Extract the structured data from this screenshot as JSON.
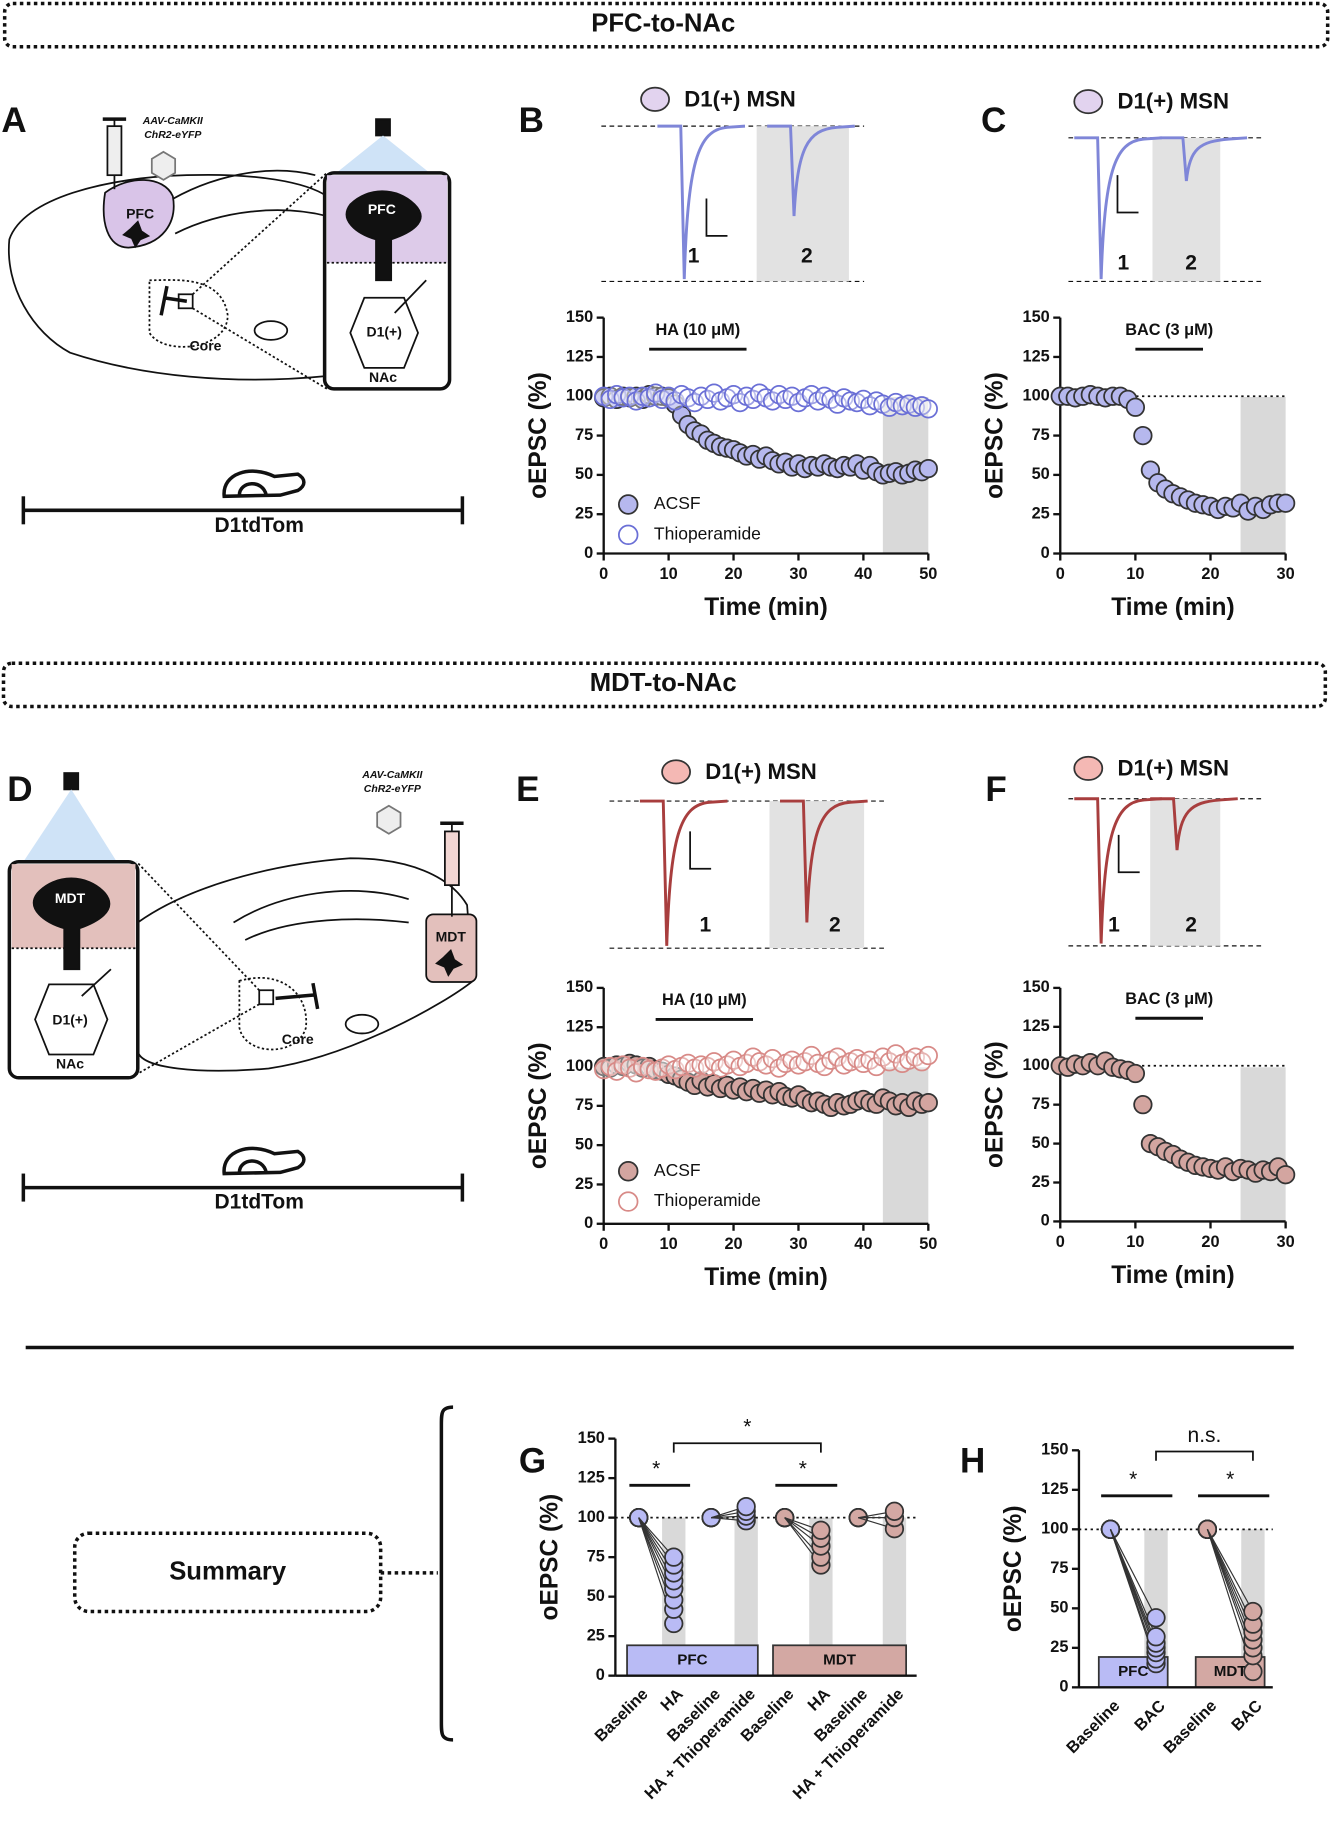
{
  "sections": [
    {
      "title": "PFC-to-NAc"
    },
    {
      "title": "MDT-to-NAc"
    }
  ],
  "diagrams": [
    {
      "panel": "A",
      "virus": [
        "AAV-CaMKII",
        "ChR2-eYFP"
      ],
      "region": "PFC",
      "inset_region": "PFC",
      "cell": "D1(+)",
      "target": "NAc",
      "core": "Core",
      "mouse": "D1tdTom"
    },
    {
      "panel": "D",
      "virus": [
        "AAV-CaMKII",
        "ChR2-eYFP"
      ],
      "region": "MDT",
      "inset_region": "MDT",
      "cell": "D1(+)",
      "target": "NAc",
      "core": "Core",
      "mouse": "D1tdTom"
    }
  ],
  "summary": {
    "label": "Summary"
  },
  "chart_data": [
    {
      "panel": "B",
      "type": "scatter",
      "inset": {
        "label": "D1(+) MSN",
        "traces": [
          "1",
          "2"
        ],
        "color": "#7f86d8",
        "cell_color": "#e2d3ef"
      },
      "drug": {
        "label": "HA (10 μM)",
        "x": [
          7,
          22
        ]
      },
      "shade": [
        43,
        50
      ],
      "xlabel": "Time (min)",
      "ylabel": "oEPSC (%)",
      "xlim": [
        0,
        50
      ],
      "xticks": [
        0,
        10,
        20,
        30,
        40,
        50
      ],
      "ylim": [
        0,
        150
      ],
      "yticks": [
        0,
        25,
        50,
        75,
        100,
        125,
        150
      ],
      "x": [
        0,
        1,
        2,
        3,
        4,
        5,
        6,
        7,
        8,
        9,
        10,
        11,
        12,
        13,
        14,
        15,
        16,
        17,
        18,
        19,
        20,
        21,
        22,
        23,
        24,
        25,
        26,
        27,
        28,
        29,
        30,
        31,
        32,
        33,
        34,
        35,
        36,
        37,
        38,
        39,
        40,
        41,
        42,
        43,
        44,
        45,
        46,
        47,
        48,
        49,
        50
      ],
      "series": [
        {
          "name": "ACSF",
          "color": "#b6b8ee",
          "filled": true,
          "values": [
            99,
            100,
            98,
            100,
            99,
            100,
            98,
            101,
            100,
            100,
            99,
            95,
            88,
            82,
            78,
            76,
            72,
            70,
            68,
            67,
            66,
            64,
            62,
            63,
            60,
            62,
            59,
            57,
            58,
            55,
            57,
            54,
            56,
            55,
            57,
            55,
            54,
            56,
            55,
            57,
            53,
            56,
            52,
            50,
            51,
            52,
            50,
            51,
            53,
            52,
            54
          ]
        },
        {
          "name": "Thioperamide",
          "color": "#6a6fd6",
          "filled": false,
          "values": [
            100,
            98,
            101,
            99,
            100,
            97,
            100,
            99,
            102,
            98,
            100,
            97,
            101,
            99,
            96,
            100,
            98,
            102,
            97,
            99,
            101,
            96,
            100,
            98,
            102,
            99,
            97,
            101,
            98,
            100,
            96,
            99,
            101,
            97,
            100,
            98,
            95,
            99,
            97,
            96,
            98,
            94,
            97,
            95,
            93,
            96,
            94,
            95,
            93,
            94,
            92
          ]
        }
      ]
    },
    {
      "panel": "C",
      "type": "scatter",
      "inset": {
        "label": "D1(+) MSN",
        "traces": [
          "1",
          "2"
        ],
        "color": "#7f86d8",
        "cell_color": "#e2d3ef"
      },
      "drug": {
        "label": "BAC (3 μM)",
        "x": [
          10,
          19
        ]
      },
      "shade": [
        24,
        30
      ],
      "reference_line": 100,
      "xlabel": "Time (min)",
      "ylabel": "oEPSC (%)",
      "xlim": [
        0,
        30
      ],
      "xticks": [
        0,
        10,
        20,
        30
      ],
      "ylim": [
        0,
        150
      ],
      "yticks": [
        0,
        25,
        50,
        75,
        100,
        125,
        150
      ],
      "x": [
        0,
        1,
        2,
        3,
        4,
        5,
        6,
        7,
        8,
        9,
        10,
        11,
        12,
        13,
        14,
        15,
        16,
        17,
        18,
        19,
        20,
        21,
        22,
        23,
        24,
        25,
        26,
        27,
        28,
        29,
        30
      ],
      "series": [
        {
          "color": "#b6b8ee",
          "filled": true,
          "values": [
            100,
            100,
            99,
            100,
            101,
            100,
            99,
            100,
            100,
            98,
            93,
            75,
            53,
            45,
            41,
            38,
            36,
            34,
            32,
            31,
            30,
            28,
            30,
            29,
            32,
            27,
            30,
            28,
            31,
            32,
            32
          ]
        }
      ]
    },
    {
      "panel": "E",
      "type": "scatter",
      "inset": {
        "label": "D1(+) MSN",
        "traces": [
          "1",
          "2"
        ],
        "color": "#a83e3e",
        "cell_color": "#f4b8b4"
      },
      "drug": {
        "label": "HA (10 μM)",
        "x": [
          8,
          23
        ]
      },
      "shade": [
        43,
        50
      ],
      "xlabel": "Time (min)",
      "ylabel": "oEPSC (%)",
      "xlim": [
        0,
        50
      ],
      "xticks": [
        0,
        10,
        20,
        30,
        40,
        50
      ],
      "ylim": [
        0,
        150
      ],
      "yticks": [
        0,
        25,
        50,
        75,
        100,
        125,
        150
      ],
      "x": [
        0,
        1,
        2,
        3,
        4,
        5,
        6,
        7,
        8,
        9,
        10,
        11,
        12,
        13,
        14,
        15,
        16,
        17,
        18,
        19,
        20,
        21,
        22,
        23,
        24,
        25,
        26,
        27,
        28,
        29,
        30,
        31,
        32,
        33,
        34,
        35,
        36,
        37,
        38,
        39,
        40,
        41,
        42,
        43,
        44,
        45,
        46,
        47,
        48,
        49,
        50
      ],
      "series": [
        {
          "name": "ACSF",
          "color": "#d3a5a0",
          "filled": true,
          "values": [
            100,
            99,
            101,
            100,
            102,
            101,
            99,
            100,
            98,
            97,
            95,
            94,
            92,
            90,
            88,
            91,
            87,
            89,
            86,
            88,
            85,
            87,
            84,
            86,
            83,
            85,
            82,
            84,
            81,
            80,
            82,
            79,
            77,
            78,
            76,
            74,
            77,
            75,
            76,
            78,
            79,
            77,
            76,
            80,
            78,
            75,
            77,
            74,
            78,
            76,
            77
          ]
        },
        {
          "name": "Thioperamide",
          "color": "#d88a87",
          "filled": false,
          "values": [
            98,
            100,
            97,
            101,
            99,
            96,
            100,
            98,
            97,
            99,
            101,
            98,
            100,
            102,
            99,
            101,
            100,
            103,
            99,
            101,
            104,
            100,
            102,
            106,
            103,
            101,
            105,
            99,
            102,
            104,
            101,
            103,
            107,
            102,
            100,
            104,
            106,
            101,
            103,
            105,
            102,
            104,
            100,
            106,
            103,
            108,
            102,
            104,
            106,
            103,
            107
          ]
        }
      ]
    },
    {
      "panel": "F",
      "type": "scatter",
      "inset": {
        "label": "D1(+) MSN",
        "traces": [
          "1",
          "2"
        ],
        "color": "#a83e3e",
        "cell_color": "#f4b8b4"
      },
      "drug": {
        "label": "BAC (3 μM)",
        "x": [
          10,
          19
        ]
      },
      "shade": [
        24,
        30
      ],
      "reference_line": 100,
      "xlabel": "Time (min)",
      "ylabel": "oEPSC (%)",
      "xlim": [
        0,
        30
      ],
      "xticks": [
        0,
        10,
        20,
        30
      ],
      "ylim": [
        0,
        150
      ],
      "yticks": [
        0,
        25,
        50,
        75,
        100,
        125,
        150
      ],
      "x": [
        0,
        1,
        2,
        3,
        4,
        5,
        6,
        7,
        8,
        9,
        10,
        11,
        12,
        13,
        14,
        15,
        16,
        17,
        18,
        19,
        20,
        21,
        22,
        23,
        24,
        25,
        26,
        27,
        28,
        29,
        30
      ],
      "series": [
        {
          "color": "#d3a5a0",
          "filled": true,
          "values": [
            100,
            99,
            101,
            100,
            102,
            100,
            103,
            99,
            98,
            97,
            95,
            75,
            50,
            48,
            45,
            43,
            40,
            38,
            36,
            35,
            34,
            33,
            35,
            32,
            34,
            33,
            31,
            33,
            32,
            35,
            30
          ]
        }
      ]
    },
    {
      "panel": "G",
      "type": "dot",
      "ylabel": "oEPSC (%)",
      "ylim": [
        0,
        150
      ],
      "yticks": [
        0,
        25,
        50,
        75,
        100,
        125,
        150
      ],
      "reference_line": 100,
      "categories": [
        "Baseline",
        "HA",
        "Baseline",
        "HA + Thioperamide",
        "Baseline",
        "HA",
        "Baseline",
        "HA + Thioperamide"
      ],
      "groups": [
        {
          "name": "PFC",
          "color": "#b9bbf5",
          "values": [
            [
              100,
              100,
              100,
              100,
              100,
              100,
              100,
              100
            ],
            [
              33,
              42,
              48,
              55,
              60,
              65,
              70,
              75
            ],
            [
              100,
              100,
              100,
              100
            ],
            [
              98,
              101,
              104,
              107
            ]
          ]
        },
        {
          "name": "MDT",
          "color": "#d3a8a3",
          "values": [
            [
              100,
              100,
              100,
              100,
              100
            ],
            [
              70,
              75,
              82,
              87,
              92
            ],
            [
              100,
              100,
              100
            ],
            [
              93,
              100,
              104
            ]
          ]
        }
      ],
      "annotations": [
        "*",
        "*",
        "*"
      ]
    },
    {
      "panel": "H",
      "type": "dot",
      "ylabel": "oEPSC (%)",
      "ylim": [
        0,
        150
      ],
      "yticks": [
        0,
        25,
        50,
        75,
        100,
        125,
        150
      ],
      "reference_line": 100,
      "categories": [
        "Baseline",
        "BAC",
        "Baseline",
        "BAC"
      ],
      "groups": [
        {
          "name": "PFC",
          "color": "#b9bbf5",
          "values": [
            [
              100,
              100,
              100,
              100,
              100,
              100,
              100
            ],
            [
              15,
              18,
              22,
              25,
              28,
              32,
              44
            ]
          ]
        },
        {
          "name": "MDT",
          "color": "#d3a8a3",
          "values": [
            [
              100,
              100,
              100,
              100,
              100,
              100,
              100
            ],
            [
              10,
              20,
              25,
              30,
              35,
              40,
              48
            ]
          ]
        }
      ],
      "annotations": [
        "*",
        "*",
        "n.s."
      ]
    }
  ]
}
